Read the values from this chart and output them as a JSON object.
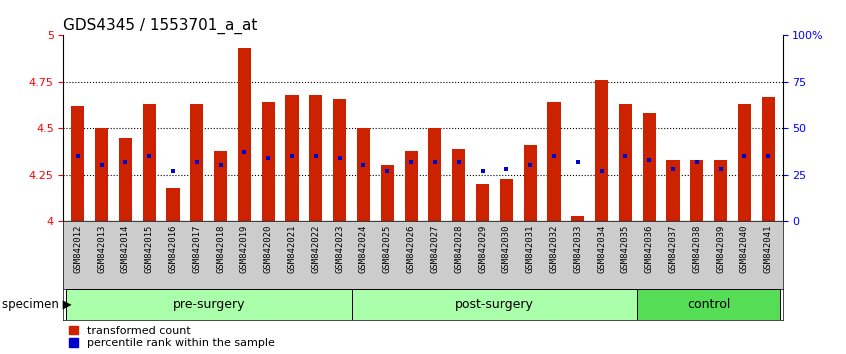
{
  "title": "GDS4345 / 1553701_a_at",
  "samples": [
    "GSM842012",
    "GSM842013",
    "GSM842014",
    "GSM842015",
    "GSM842016",
    "GSM842017",
    "GSM842018",
    "GSM842019",
    "GSM842020",
    "GSM842021",
    "GSM842022",
    "GSM842023",
    "GSM842024",
    "GSM842025",
    "GSM842026",
    "GSM842027",
    "GSM842028",
    "GSM842029",
    "GSM842030",
    "GSM842031",
    "GSM842032",
    "GSM842033",
    "GSM842034",
    "GSM842035",
    "GSM842036",
    "GSM842037",
    "GSM842038",
    "GSM842039",
    "GSM842040",
    "GSM842041"
  ],
  "red_values": [
    4.62,
    4.5,
    4.45,
    4.63,
    4.18,
    4.63,
    4.38,
    4.93,
    4.64,
    4.68,
    4.68,
    4.66,
    4.5,
    4.3,
    4.38,
    4.5,
    4.39,
    4.2,
    4.23,
    4.41,
    4.64,
    4.03,
    4.76,
    4.63,
    4.58,
    4.33,
    4.33,
    4.33,
    4.63,
    4.67
  ],
  "blue_values": [
    4.35,
    4.3,
    4.32,
    4.35,
    4.27,
    4.32,
    4.3,
    4.37,
    4.34,
    4.35,
    4.35,
    4.34,
    4.3,
    4.27,
    4.32,
    4.32,
    4.32,
    4.27,
    4.28,
    4.3,
    4.35,
    4.32,
    4.27,
    4.35,
    4.33,
    4.28,
    4.32,
    4.28,
    4.35,
    4.35
  ],
  "groups": [
    {
      "label": "pre-surgery",
      "start": 0,
      "end": 12,
      "color": "#aaffaa"
    },
    {
      "label": "post-surgery",
      "start": 12,
      "end": 24,
      "color": "#aaffaa"
    },
    {
      "label": "control",
      "start": 24,
      "end": 30,
      "color": "#44cc44"
    }
  ],
  "ylim_left": [
    4.0,
    5.0
  ],
  "ylim_right": [
    0,
    100
  ],
  "yticks_left": [
    4.0,
    4.25,
    4.5,
    4.75,
    5.0
  ],
  "ytick_labels_left": [
    "4",
    "4.25",
    "4.5",
    "4.75",
    "5"
  ],
  "yticks_right": [
    0,
    25,
    50,
    75,
    100
  ],
  "ytick_labels_right": [
    "0",
    "25",
    "50",
    "75",
    "100%"
  ],
  "bar_color": "#CC2200",
  "dot_color": "#0000CC",
  "bar_width": 0.55,
  "legend_red_label": "transformed count",
  "legend_blue_label": "percentile rank within the sample",
  "specimen_label": "specimen",
  "tick_fontsize": 8,
  "group_fontsize": 9,
  "title_fontsize": 11,
  "dot_size": 3.5
}
